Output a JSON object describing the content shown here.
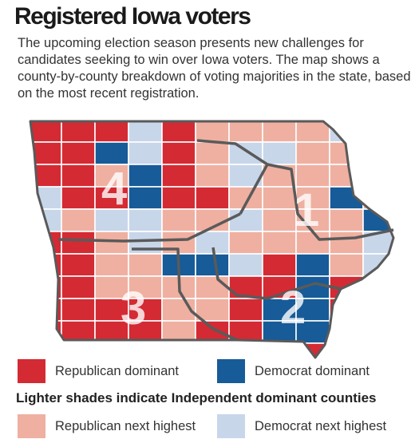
{
  "title": "Registered Iowa voters",
  "subtitle": "The upcoming election season presents new challenges for candidates seeking to win over Iowa voters. The map shows a county-by-county breakdown of voting majorities in the state, based on the most recent registration.",
  "colors": {
    "republican_dominant": "#d42a33",
    "democrat_dominant": "#175b98",
    "republican_next_highest": "#efb0a1",
    "democrat_next_highest": "#c8d6ea",
    "district_border": "#5a5a5a",
    "district_number": "#ffffff"
  },
  "districts": [
    {
      "number": "1"
    },
    {
      "number": "2"
    },
    {
      "number": "3"
    },
    {
      "number": "4"
    }
  ],
  "legend": {
    "republican_dominant": "Republican dominant",
    "democrat_dominant": "Democrat dominant",
    "note": "Lighter shades indicate Independent dominant counties",
    "republican_next_highest": "Republican next highest",
    "democrat_next_highest": "Democrat next highest"
  },
  "counties": [
    [
      "R",
      "R",
      "R",
      "B",
      "R",
      "P",
      "P",
      "P",
      "P",
      "B",
      "R"
    ],
    [
      "R",
      "R",
      "D",
      "B",
      "R",
      "P",
      "B",
      "B",
      "P",
      "P",
      "B"
    ],
    [
      "R",
      "R",
      "P",
      "D",
      "R",
      "P",
      "B",
      "P",
      "P",
      "P",
      "P"
    ],
    [
      "B",
      "R",
      "R",
      "D",
      "R",
      "R",
      "P",
      "P",
      "P",
      "D",
      "P"
    ],
    [
      "B",
      "P",
      "B",
      "B",
      "P",
      "P",
      "B",
      "P",
      "P",
      "P",
      "D"
    ],
    [
      "R",
      "R",
      "P",
      "B",
      "P",
      "B",
      "P",
      "P",
      "P",
      "P",
      "B"
    ],
    [
      "R",
      "R",
      "P",
      "P",
      "D",
      "D",
      "B",
      "R",
      "D",
      "P",
      "B"
    ],
    [
      "R",
      "R",
      "P",
      "P",
      "P",
      "P",
      "R",
      "R",
      "D",
      "R",
      "P"
    ],
    [
      "R",
      "R",
      "R",
      "R",
      "P",
      "P",
      "R",
      "D",
      "D",
      "R",
      "D"
    ],
    [
      "R",
      "R",
      "R",
      "R",
      "P",
      "R",
      "R",
      "D",
      "D",
      "R",
      "D"
    ],
    [
      "R",
      "R",
      "R",
      "R",
      "R",
      "R",
      "P",
      "R",
      "R",
      "D",
      "D"
    ]
  ]
}
